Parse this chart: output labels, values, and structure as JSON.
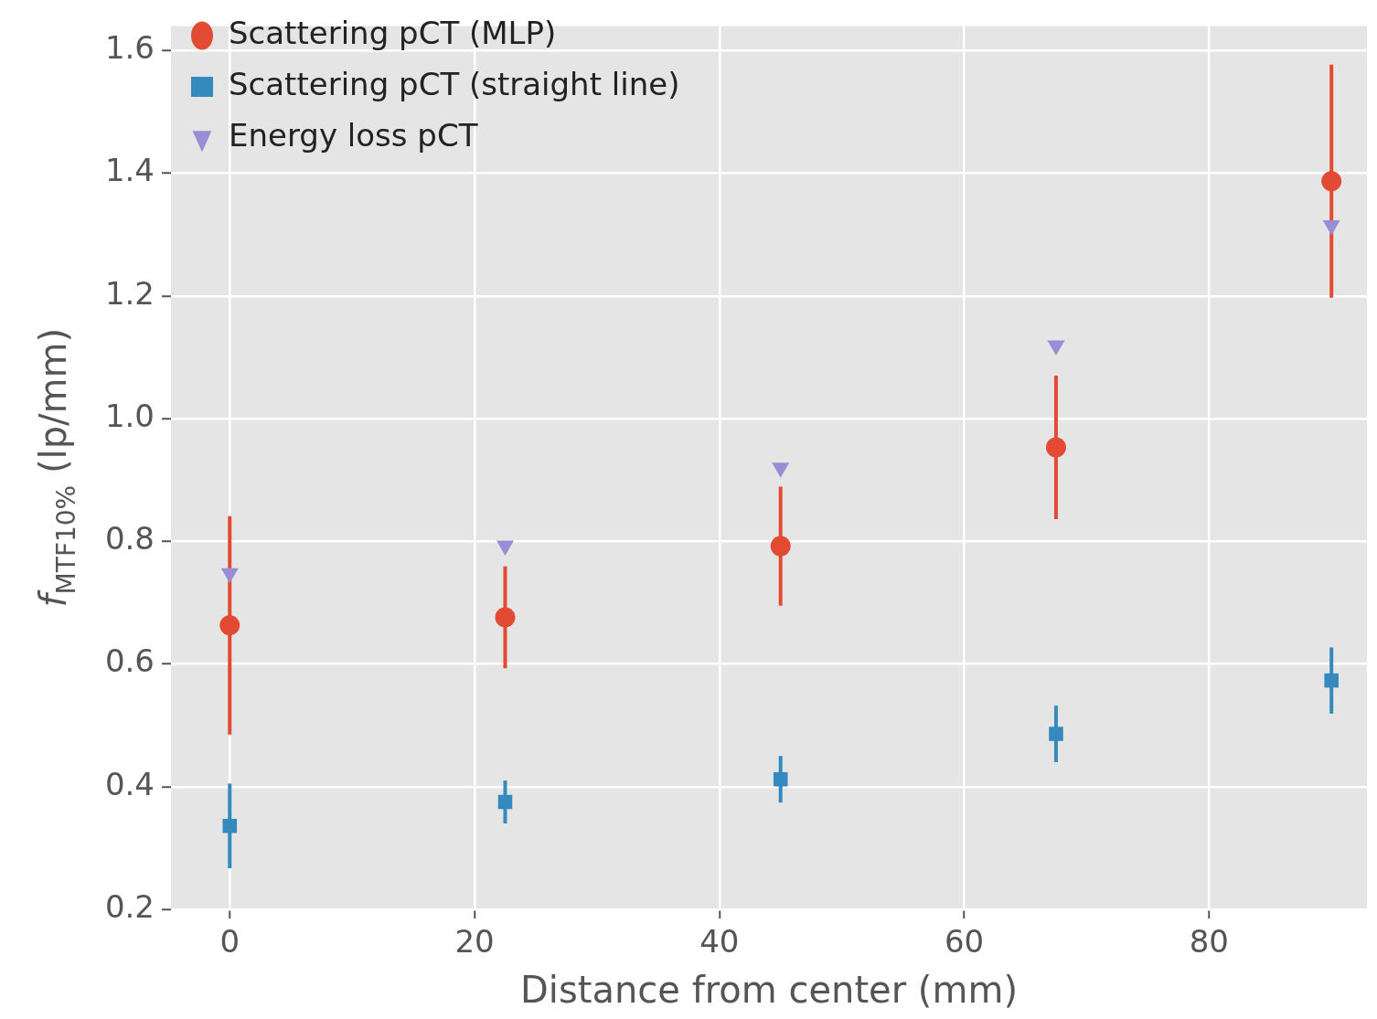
{
  "chart_data": {
    "type": "scatter",
    "xlabel": "Distance from center (mm)",
    "ylabel": "f$_{MTF10%}$ (lp/mm)",
    "x": [
      0,
      22.5,
      45,
      67.5,
      90
    ],
    "series": [
      {
        "name": "Scattering pCT (MLP)",
        "color": "#e24a33",
        "marker": "circle",
        "values": [
          0.663,
          0.676,
          0.792,
          0.953,
          1.387
        ],
        "errors": [
          0.178,
          0.083,
          0.097,
          0.117,
          0.19
        ]
      },
      {
        "name": "Scattering pCT (straight line)",
        "color": "#348abd",
        "marker": "square",
        "values": [
          0.336,
          0.375,
          0.412,
          0.486,
          0.573
        ],
        "errors": [
          0.069,
          0.035,
          0.038,
          0.046,
          0.054
        ]
      },
      {
        "name": "Energy loss pCT",
        "color": "#988ed5",
        "marker": "triangle",
        "values": [
          0.748,
          0.793,
          0.92,
          1.119,
          1.315
        ]
      }
    ],
    "xlim": [
      -4.8,
      92.9
    ],
    "ylim": [
      0.2,
      1.64
    ],
    "xticks": [
      0,
      20,
      40,
      60,
      80
    ],
    "yticks": [
      0.2,
      0.4,
      0.6,
      0.8,
      {
        "value": 1,
        "label": "1.0"
      },
      1.2,
      1.4,
      1.6
    ],
    "grid": true,
    "legend": "top left"
  }
}
